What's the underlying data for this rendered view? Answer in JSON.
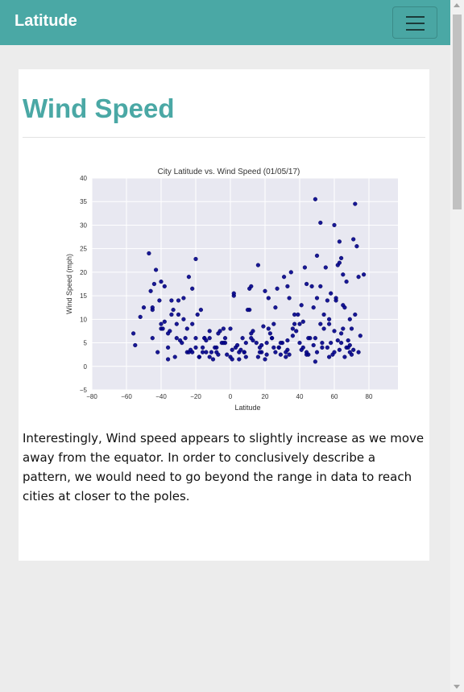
{
  "navbar": {
    "brand": "Latitude",
    "toggle_icon": "hamburger-menu-icon"
  },
  "card": {
    "title": "Wind Speed",
    "description": "Interestingly, Wind speed appears to slightly increase as we move away from the equator. In order to conclusively describe a pattern, we would need to go beyond the range in data to reach cities at closer to the poles."
  },
  "colors": {
    "brand": "#4aa8a5",
    "point": "#00008b",
    "plot_bg": "#e8e8f1"
  },
  "chart_data": {
    "type": "scatter",
    "title": "City Latitude vs. Wind Speed (01/05/17)",
    "xlabel": "Latitude",
    "ylabel": "Wind Speed (mph)",
    "xlim": [
      -80,
      100
    ],
    "ylim": [
      -5,
      40
    ],
    "xticks": [
      -80,
      -60,
      -40,
      -20,
      0,
      20,
      40,
      60,
      80,
      100
    ],
    "yticks": [
      -5,
      0,
      5,
      10,
      15,
      20,
      25,
      30,
      35,
      40
    ],
    "grid": true,
    "legend": "none",
    "x": [
      -56,
      -55,
      -52,
      -47,
      -46,
      -45,
      -43,
      -40,
      -38,
      -34,
      -31,
      -27,
      -24,
      -20,
      -17,
      -12,
      -8,
      -3,
      2,
      7,
      12,
      16,
      20,
      23,
      27,
      31,
      35,
      39,
      43,
      47,
      49,
      50,
      52,
      54,
      57,
      60,
      62,
      63,
      64,
      65,
      67,
      69,
      71,
      72,
      73,
      74,
      75,
      77,
      -50,
      -45,
      -42,
      -40,
      -36,
      -33,
      -29,
      -25,
      -22,
      -18,
      -15,
      -10,
      -5,
      0,
      5,
      9,
      13,
      18,
      22,
      26,
      30,
      34,
      38,
      42,
      46,
      50,
      54,
      58,
      61,
      64,
      67,
      70,
      72,
      74,
      -41,
      -38,
      -35,
      -30,
      -25,
      -20,
      -16,
      -12,
      -7,
      -2,
      3,
      8,
      12,
      17,
      21,
      25,
      29,
      33,
      37,
      41,
      45,
      49,
      53,
      57,
      60,
      63,
      66,
      69,
      71,
      -44,
      -39,
      -34,
      -30,
      -26,
      -22,
      -18,
      -14,
      -9,
      -4,
      1,
      6,
      11,
      15,
      19,
      24,
      28,
      32,
      36,
      40,
      44,
      48,
      52,
      56,
      59,
      62,
      65,
      68,
      70,
      -45,
      -40,
      -36,
      -32,
      -28,
      -24,
      -20,
      -16,
      -12,
      -8,
      -4,
      0,
      4,
      8,
      12,
      16,
      20,
      24,
      28,
      32,
      36,
      40,
      44,
      48,
      52,
      56,
      60,
      64,
      68,
      -36,
      -31,
      -27,
      -23,
      -19,
      -15,
      -11,
      -7,
      -3,
      1,
      5,
      9,
      13,
      17,
      21,
      25,
      29,
      33,
      37,
      41,
      45,
      49,
      53,
      57,
      61,
      65,
      69,
      -22,
      -14,
      -6,
      2,
      10,
      18,
      26,
      34,
      42,
      50,
      58,
      66,
      11,
      22,
      33,
      44,
      55,
      63
    ],
    "y": [
      7,
      4.5,
      10.5,
      24,
      16,
      12,
      20.5,
      18,
      17,
      14,
      9,
      10,
      19,
      22.8,
      12,
      7.5,
      4,
      5,
      15,
      6,
      17,
      21.5,
      16,
      7,
      16.5,
      19,
      20,
      11,
      21,
      17,
      35.5,
      23.5,
      30.5,
      11,
      9,
      30,
      21.5,
      26.5,
      23,
      19.5,
      18,
      10,
      27,
      34.5,
      25.5,
      19,
      6.5,
      19.5,
      12.5,
      6,
      3,
      8,
      4,
      12,
      5.5,
      3,
      9,
      2,
      6,
      1.5,
      5,
      2,
      3,
      2,
      5.5,
      3,
      8,
      3,
      5,
      2.5,
      7.5,
      4,
      6,
      3,
      8,
      5,
      14,
      7,
      4,
      2.5,
      11,
      3,
      14,
      9.5,
      7.5,
      11,
      8,
      4,
      3,
      6,
      7,
      2.5,
      4,
      3,
      6,
      4,
      2.5,
      9,
      5,
      3.5,
      11,
      13,
      2.5,
      6,
      4,
      10,
      7.5,
      3.5,
      2,
      4.5,
      3.5,
      17.5,
      8,
      11,
      14,
      6,
      3,
      2,
      5.5,
      4,
      8,
      1.5,
      3.5,
      12,
      5,
      8.5,
      6,
      4,
      2,
      6.5,
      9,
      3,
      12.5,
      17,
      4,
      2.5,
      5.5,
      8,
      5.5,
      8,
      12.5,
      9,
      7,
      2,
      5,
      3,
      6,
      4,
      2,
      3,
      5,
      8,
      4.5,
      3,
      7,
      2,
      1.5,
      6,
      4,
      3,
      8,
      5,
      2.5,
      4.5,
      9,
      14,
      3,
      5,
      4,
      1.5,
      6,
      14.5,
      3.5,
      11,
      6,
      3,
      2.5,
      6,
      3.5,
      1.5,
      5,
      7.5,
      3,
      5,
      4,
      2.5,
      5.5,
      9,
      3.5,
      6,
      1,
      5,
      2,
      14.5,
      13,
      3,
      16.5,
      3,
      7.5,
      15.5,
      12,
      4.5,
      12.5,
      14.5,
      9.5,
      14.5,
      15.5,
      12.5,
      16.5,
      14.5,
      17,
      17.5,
      21,
      22
    ]
  }
}
